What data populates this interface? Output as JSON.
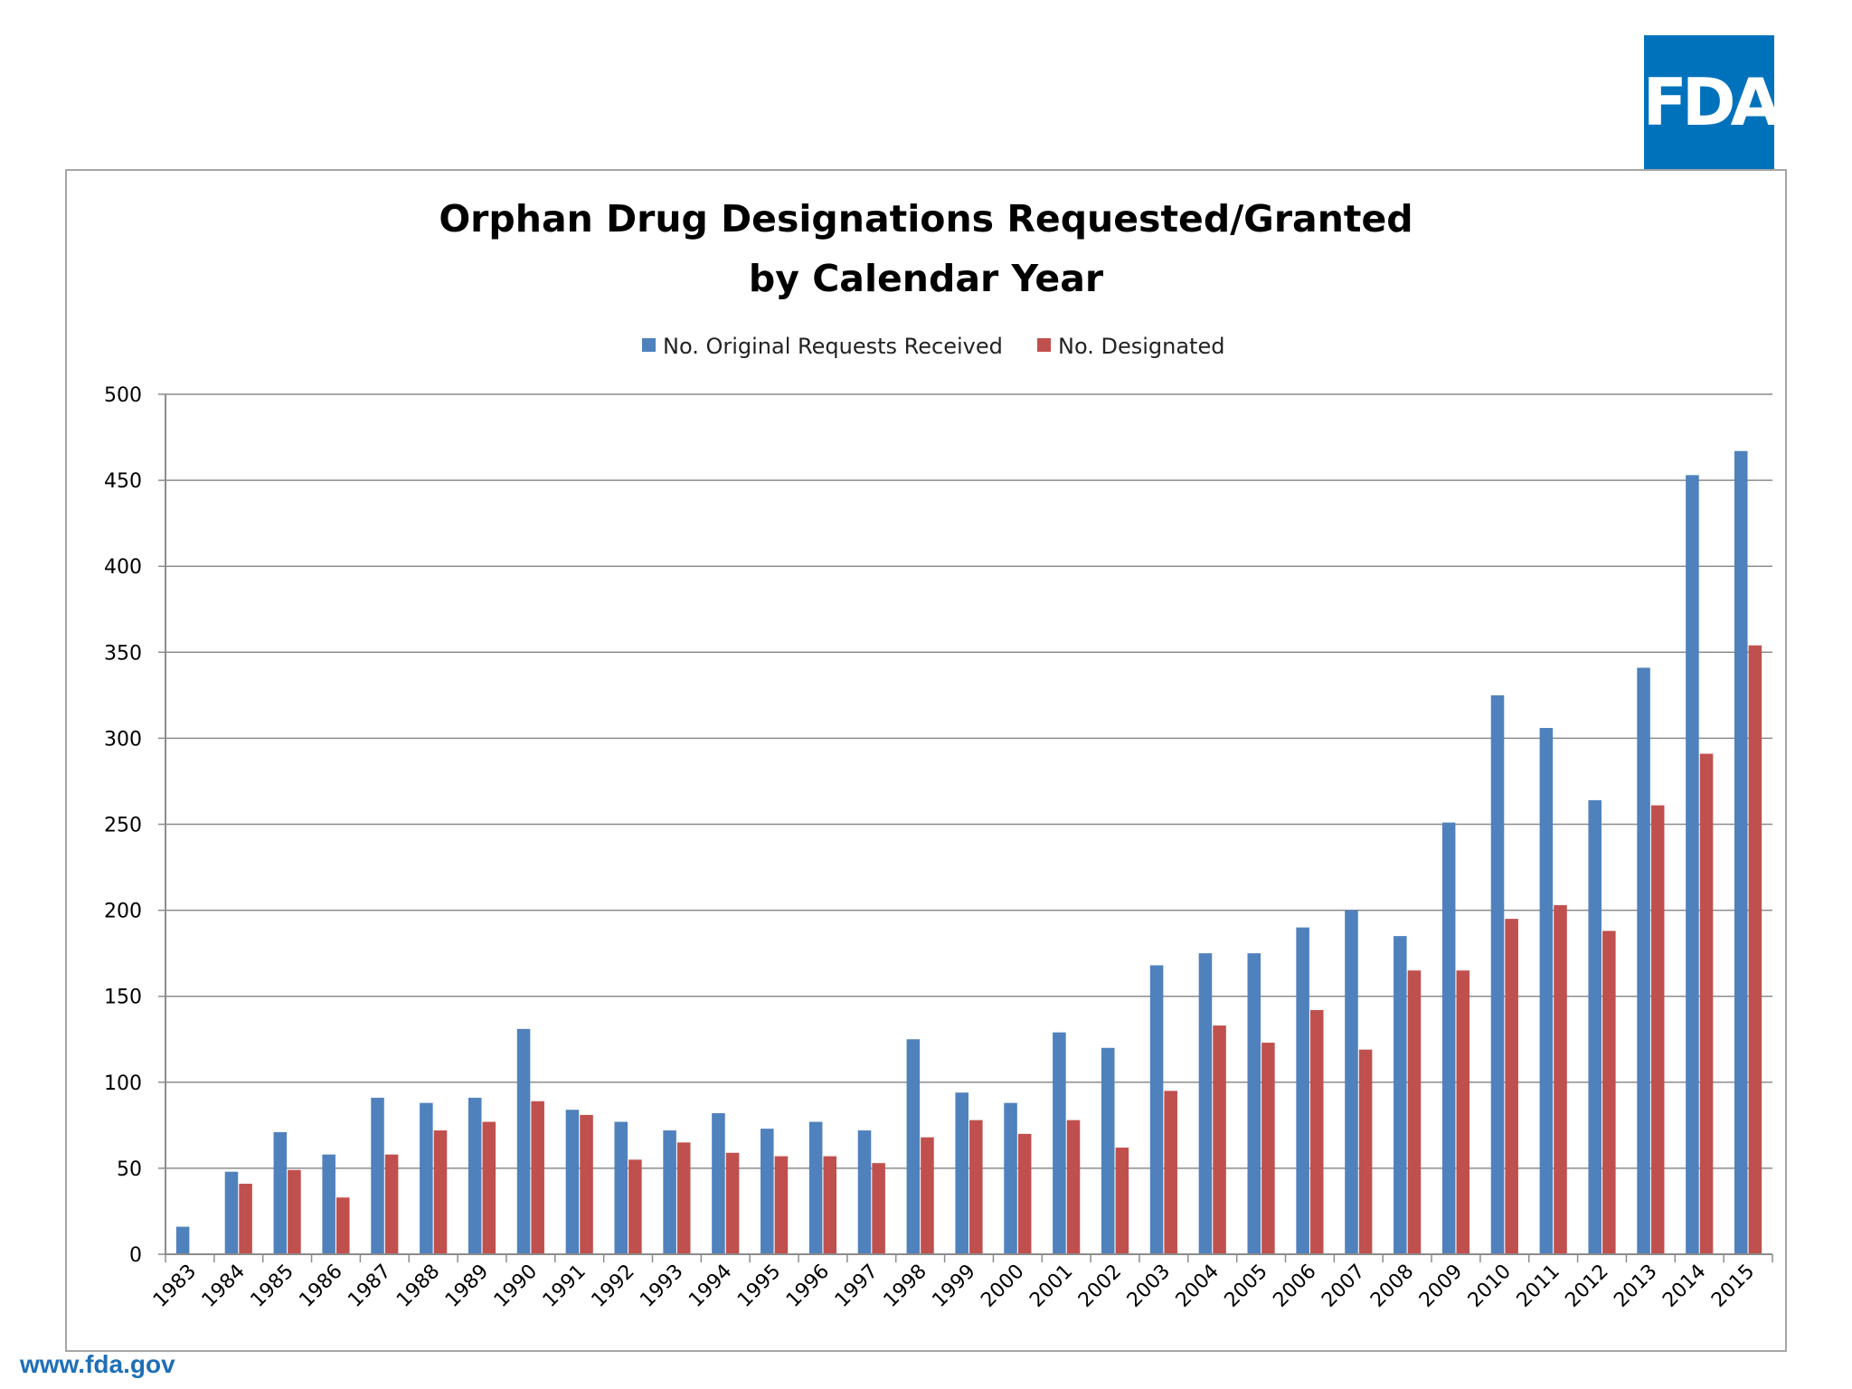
{
  "logo": {
    "text": "FDA"
  },
  "footer": {
    "url": "www.fda.gov"
  },
  "chart_data": {
    "type": "bar",
    "title_lines": [
      "Orphan Drug Designations Requested/Granted",
      "by Calendar Year"
    ],
    "xlabel": "",
    "ylabel": "",
    "ylim": [
      0,
      500
    ],
    "yticks": [
      0,
      50,
      100,
      150,
      200,
      250,
      300,
      350,
      400,
      450,
      500
    ],
    "grid": true,
    "legend_position": "top-center",
    "categories": [
      "1983",
      "1984",
      "1985",
      "1986",
      "1987",
      "1988",
      "1989",
      "1990",
      "1991",
      "1992",
      "1993",
      "1994",
      "1995",
      "1996",
      "1997",
      "1998",
      "1999",
      "2000",
      "2001",
      "2002",
      "2003",
      "2004",
      "2005",
      "2006",
      "2007",
      "2008",
      "2009",
      "2010",
      "2011",
      "2012",
      "2013",
      "2014",
      "2015"
    ],
    "series": [
      {
        "name": "No. Original Requests Received",
        "color": "#4f81bd",
        "values": [
          16,
          48,
          71,
          58,
          91,
          88,
          91,
          131,
          84,
          77,
          72,
          82,
          73,
          77,
          72,
          125,
          94,
          88,
          129,
          120,
          168,
          175,
          175,
          190,
          200,
          185,
          251,
          325,
          306,
          264,
          341,
          453,
          467
        ]
      },
      {
        "name": "No. Designated",
        "color": "#c0504d",
        "values": [
          0,
          41,
          49,
          33,
          58,
          72,
          77,
          89,
          81,
          55,
          65,
          59,
          57,
          57,
          53,
          68,
          78,
          70,
          78,
          62,
          95,
          133,
          123,
          142,
          119,
          165,
          165,
          195,
          203,
          188,
          261,
          291,
          354
        ]
      }
    ]
  }
}
